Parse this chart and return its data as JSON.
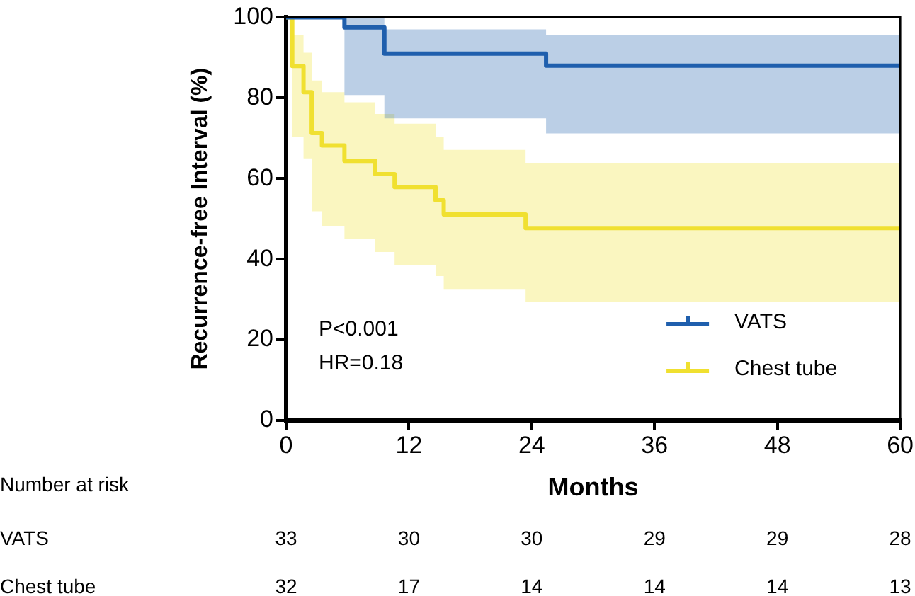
{
  "chart_data": {
    "type": "step",
    "xlabel": "Months",
    "ylabel": "Recurrence-free Interval (%)",
    "xlim": [
      0,
      60
    ],
    "xticks": [
      0,
      12,
      24,
      36,
      48,
      60
    ],
    "ylim": [
      0,
      100
    ],
    "yticks": [
      0,
      20,
      40,
      60,
      80,
      100
    ],
    "grid": false,
    "legend": "bottom right",
    "marker": "none",
    "line_style": "solid",
    "series": [
      {
        "name": "VATS",
        "color": "#1f5fad",
        "x": [
          0,
          5.7,
          9.6,
          25.4,
          60
        ],
        "values": [
          100,
          97.5,
          91,
          88,
          88
        ],
        "lower": [
          100,
          80.7,
          74.9,
          71.2,
          71.2
        ],
        "upper": [
          100,
          100,
          97,
          95.6,
          95.6
        ]
      },
      {
        "name": "Chest tube",
        "color": "#f0e030",
        "x": [
          0,
          0.6,
          1.7,
          2.5,
          3.5,
          5.7,
          8.7,
          10.6,
          14.6,
          15.4,
          23.4,
          60
        ],
        "values": [
          100,
          87.9,
          81.4,
          71.3,
          68.2,
          64.4,
          61.1,
          57.9,
          54.6,
          51.1,
          47.7,
          47.7
        ],
        "lower": [
          100,
          70.4,
          65,
          51.9,
          48.3,
          45.1,
          41.8,
          38.6,
          35.8,
          32.6,
          29.3,
          29.3
        ],
        "upper": [
          100,
          95.6,
          91.2,
          84.3,
          81.4,
          78.9,
          76,
          73.6,
          70.4,
          67.1,
          63.9,
          63.9
        ]
      }
    ],
    "annotations": [
      "P<0.001",
      "HR=0.18",
      "Number at risk",
      "33",
      "30",
      "30",
      "29",
      "29",
      "28",
      "32",
      "17",
      "14",
      "14",
      "14",
      "13"
    ]
  }
}
